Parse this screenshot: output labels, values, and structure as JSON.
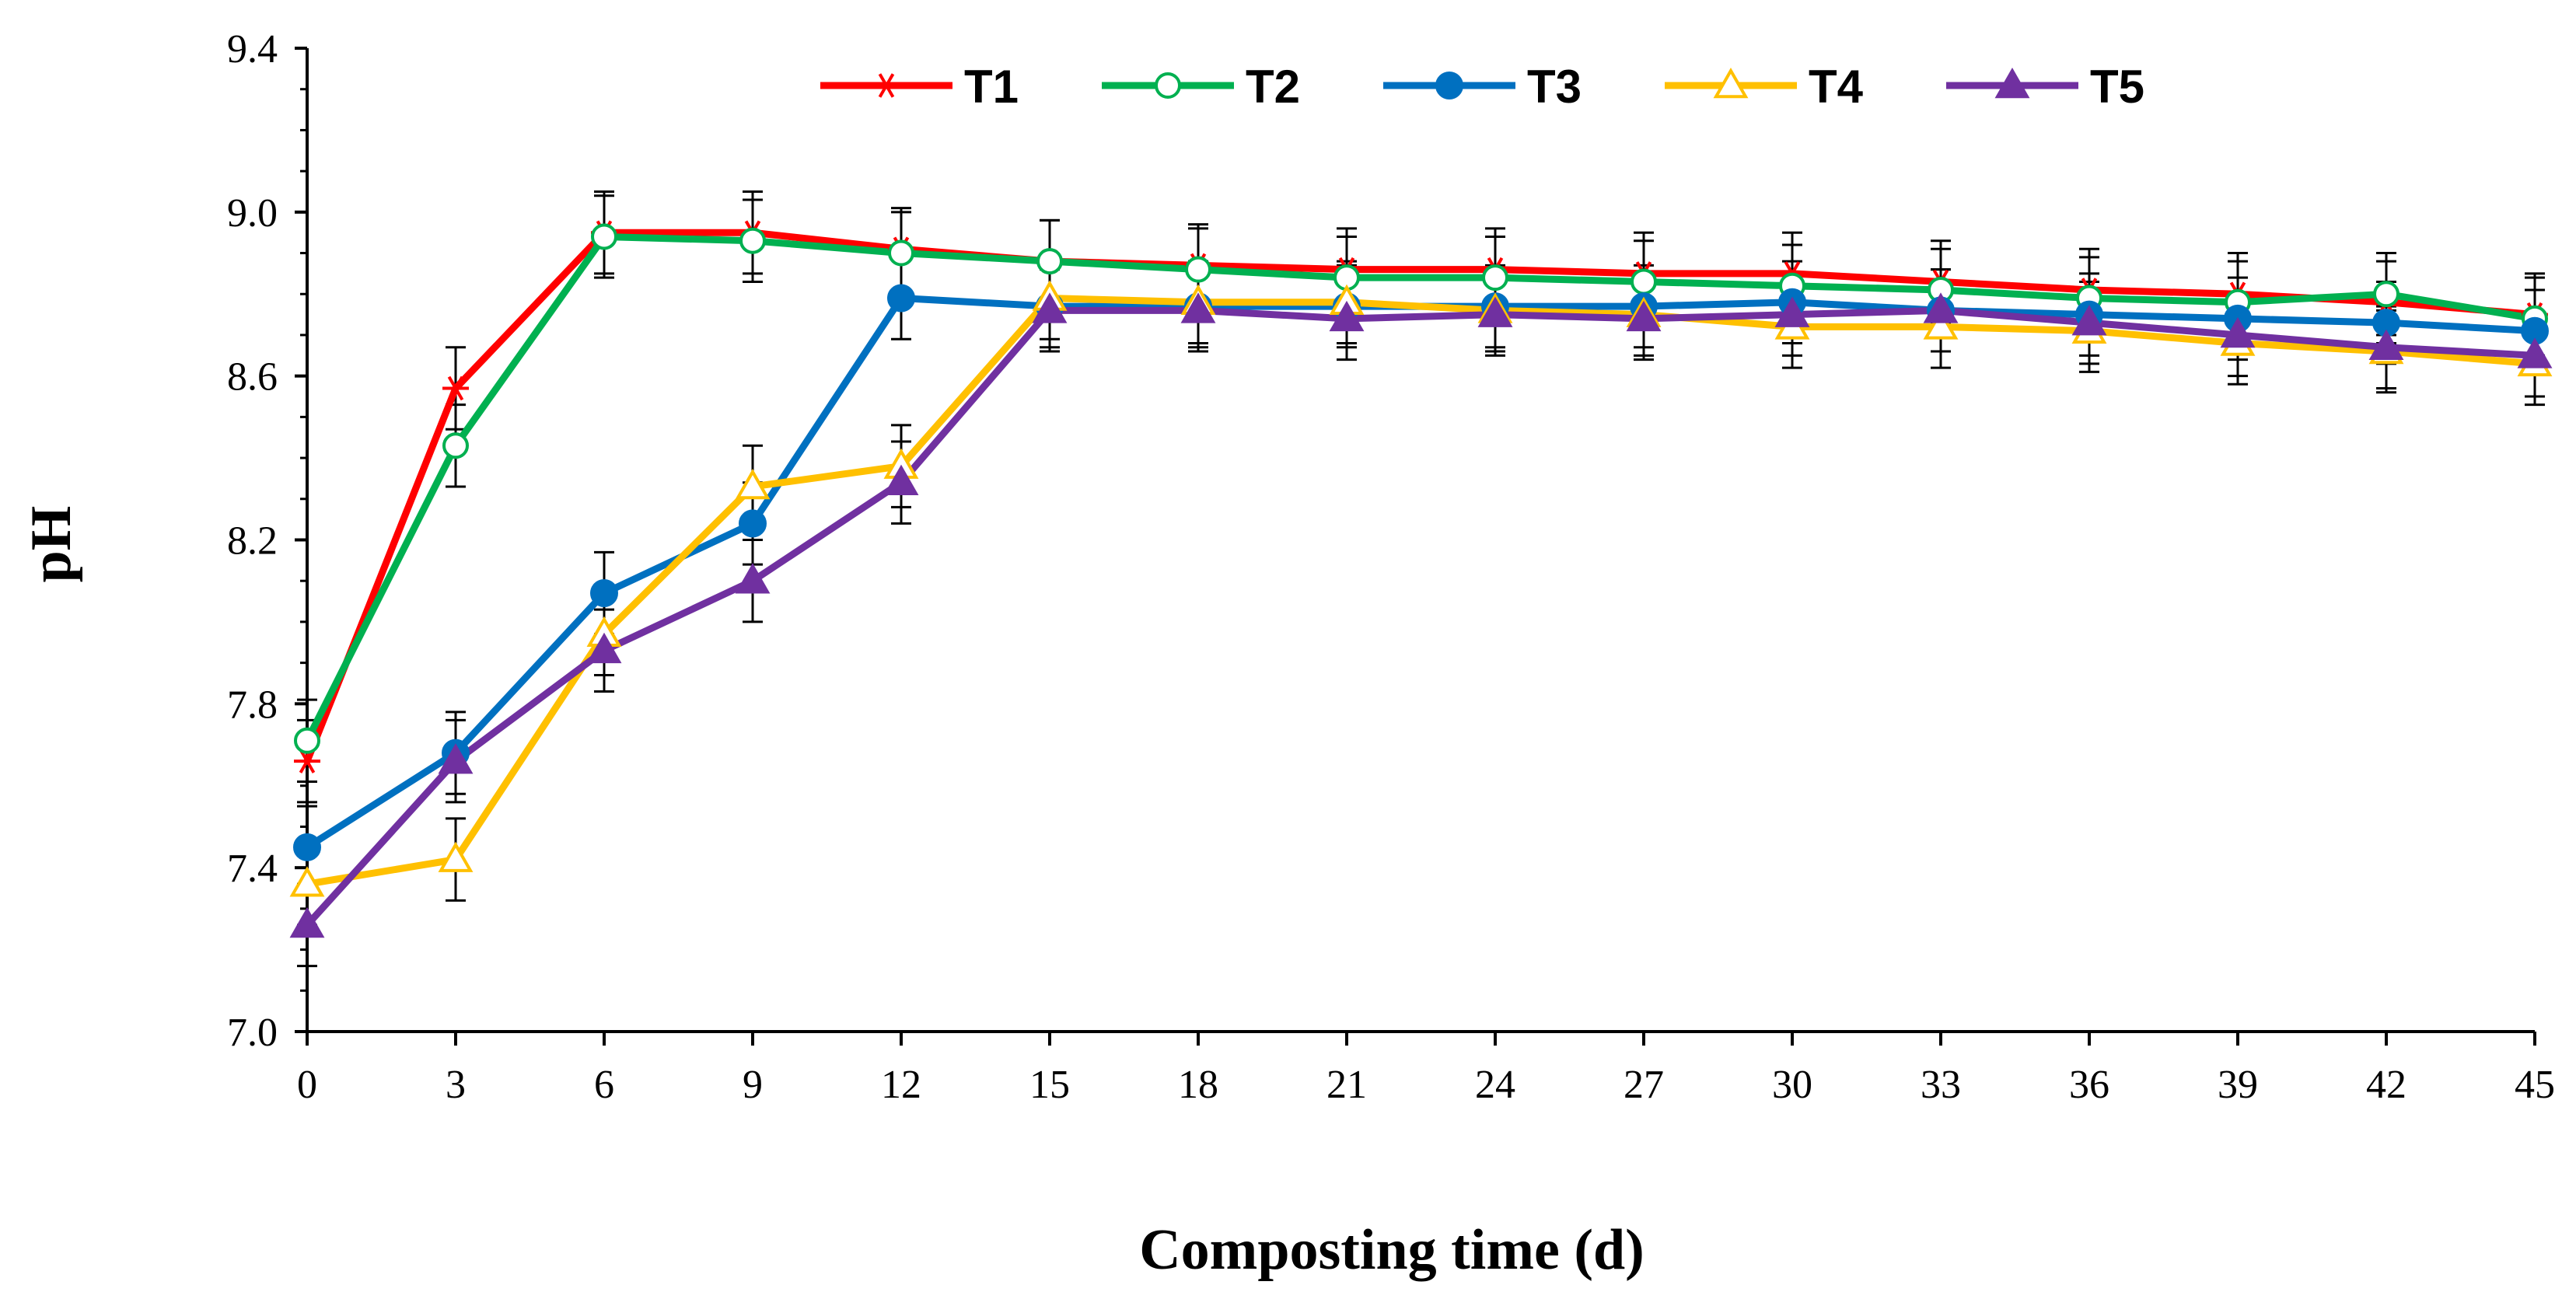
{
  "chart_data": {
    "type": "line",
    "title": "",
    "xlabel": "Composting time (d)",
    "ylabel": "pH",
    "x": [
      0,
      3,
      6,
      9,
      12,
      15,
      18,
      21,
      24,
      27,
      30,
      33,
      36,
      39,
      42,
      45
    ],
    "x_tick_labels": [
      "0",
      "3",
      "6",
      "9",
      "12",
      "15",
      "18",
      "21",
      "24",
      "27",
      "30",
      "33",
      "36",
      "39",
      "42",
      "45"
    ],
    "xlim": [
      0,
      45
    ],
    "ylim": [
      7.0,
      9.4
    ],
    "y_ticks": [
      7.0,
      7.4,
      7.8,
      8.2,
      8.6,
      9.0,
      9.4
    ],
    "y_tick_labels": [
      "7.0",
      "7.4",
      "7.8",
      "8.2",
      "8.6",
      "9.0",
      "9.4"
    ],
    "grid": false,
    "legend_position": "top",
    "error_bar": 0.1,
    "series": [
      {
        "name": "T1",
        "color": "#ff0000",
        "marker": "star",
        "values": [
          7.66,
          8.57,
          8.95,
          8.95,
          8.91,
          8.88,
          8.87,
          8.86,
          8.86,
          8.85,
          8.85,
          8.83,
          8.81,
          8.8,
          8.78,
          8.75
        ]
      },
      {
        "name": "T2",
        "color": "#00b050",
        "marker": "open-circle",
        "values": [
          7.71,
          8.43,
          8.94,
          8.93,
          8.9,
          8.88,
          8.86,
          8.84,
          8.84,
          8.83,
          8.82,
          8.81,
          8.79,
          8.78,
          8.8,
          8.74
        ]
      },
      {
        "name": "T3",
        "color": "#0070c0",
        "marker": "filled-circle",
        "values": [
          7.45,
          7.68,
          8.07,
          8.24,
          8.79,
          8.77,
          8.77,
          8.77,
          8.77,
          8.77,
          8.78,
          8.76,
          8.75,
          8.74,
          8.73,
          8.71
        ]
      },
      {
        "name": "T4",
        "color": "#ffc000",
        "marker": "open-triangle",
        "values": [
          7.36,
          7.42,
          7.97,
          8.33,
          8.38,
          8.79,
          8.78,
          8.78,
          8.76,
          8.75,
          8.72,
          8.72,
          8.71,
          8.68,
          8.66,
          8.63
        ]
      },
      {
        "name": "T5",
        "color": "#7030a0",
        "marker": "filled-triangle",
        "values": [
          7.26,
          7.66,
          7.93,
          8.1,
          8.34,
          8.76,
          8.76,
          8.74,
          8.75,
          8.74,
          8.75,
          8.76,
          8.73,
          8.7,
          8.67,
          8.65
        ]
      }
    ]
  }
}
